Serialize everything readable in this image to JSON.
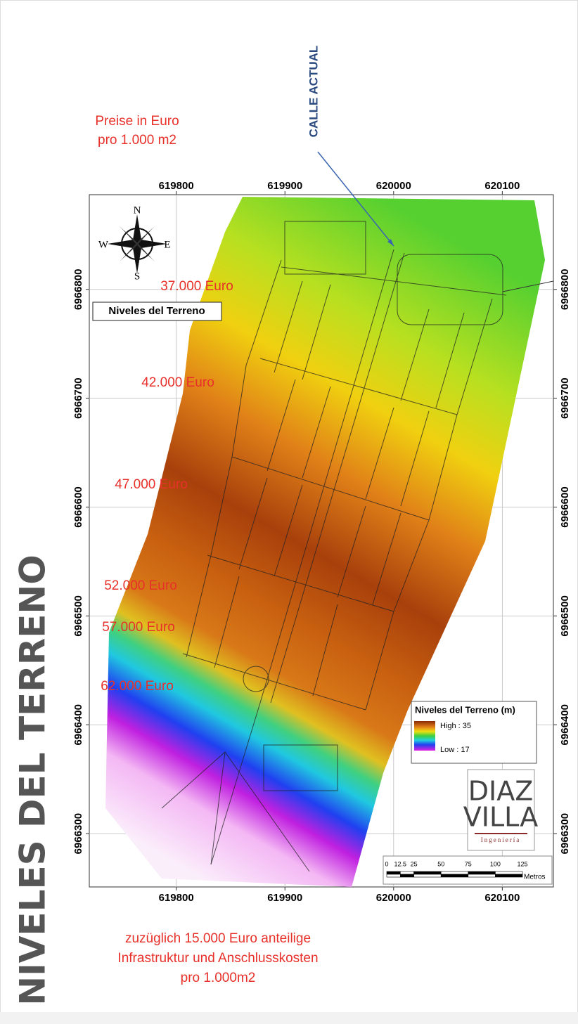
{
  "header": {
    "price_note": [
      "Preise in Euro",
      "pro 1.000 m2"
    ]
  },
  "side_title": "NIVELES DEL TERRENO",
  "street_label": "CALLE ACTUAL",
  "map": {
    "xlim": [
      619720,
      620147
    ],
    "ylim": [
      6966251,
      6966887
    ],
    "xticks": [
      619800,
      619900,
      620000,
      620100
    ],
    "yticks": [
      6966300,
      6966400,
      6966500,
      6966600,
      6966700,
      6966800
    ],
    "inset_label": "Niveles del Terreno",
    "compass": {
      "n": "N",
      "s": "S",
      "e": "E",
      "w": "W"
    }
  },
  "price_zones": [
    "37.000 Euro",
    "42.000 Euro",
    "47.000 Euro",
    "52.000 Euro",
    "57.000 Euro",
    "62.000 Euro"
  ],
  "legend": {
    "title": "Niveles del Terreno (m)",
    "high": {
      "value": 35,
      "label": "High : 35"
    },
    "low": {
      "value": 17,
      "label": "Low : 17"
    }
  },
  "logo": {
    "line1": "DIAZ",
    "line2": "VILLA",
    "subtitle": "Ingeniería"
  },
  "scale_bar": {
    "ticks": [
      0,
      12.5,
      25,
      50,
      75,
      100,
      125
    ],
    "unit": "Metros"
  },
  "footer": [
    "zuzüglich 15.000 Euro anteilige",
    "Infrastruktur und Anschlusskosten",
    "pro 1.000m2"
  ]
}
